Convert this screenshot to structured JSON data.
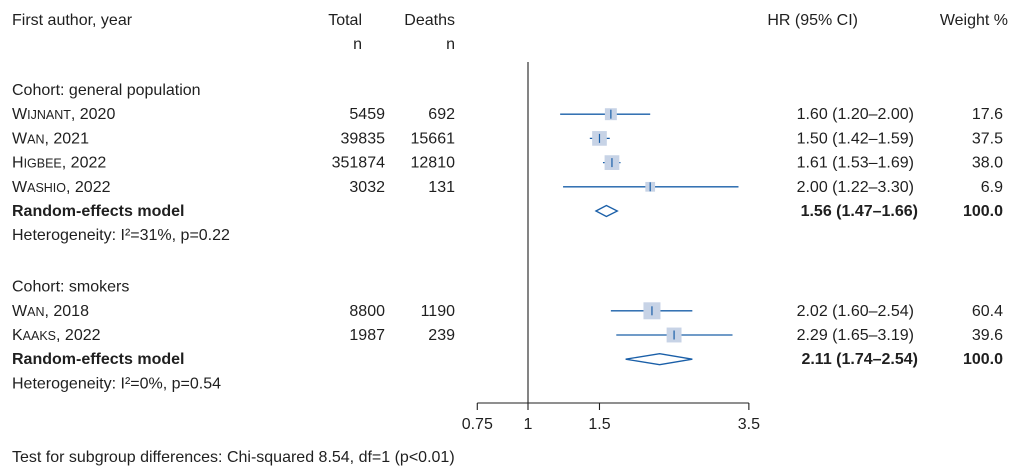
{
  "columns": {
    "author": "First author, year",
    "total_line1": "Total",
    "total_line2": "n",
    "deaths_line1": "Deaths",
    "deaths_line2": "n",
    "hr": "HR (95% CI)",
    "weight": "Weight %"
  },
  "groups": [
    {
      "title": "Cohort: general population",
      "heterogeneity": "Heterogeneity: I²=31%, p=0.22",
      "model": {
        "label": "Random-effects model",
        "hr": 1.56,
        "lower": 1.47,
        "upper": 1.66,
        "ci_text": "1.56 (1.47–1.66)",
        "weight_text": "100.0"
      },
      "studies": [
        {
          "author": "Wijnant",
          "year": "2020",
          "total": "5459",
          "deaths": "692",
          "hr": 1.6,
          "lower": 1.2,
          "upper": 2.0,
          "ci_text": "1.60 (1.20–2.00)",
          "weight": 17.6,
          "weight_text": "17.6"
        },
        {
          "author": "Wan",
          "year": "2021",
          "total": "39835",
          "deaths": "15661",
          "hr": 1.5,
          "lower": 1.42,
          "upper": 1.59,
          "ci_text": "1.50 (1.42–1.59)",
          "weight": 37.5,
          "weight_text": "37.5"
        },
        {
          "author": "Higbee",
          "year": "2022",
          "total": "351874",
          "deaths": "12810",
          "hr": 1.61,
          "lower": 1.53,
          "upper": 1.69,
          "ci_text": "1.61 (1.53–1.69)",
          "weight": 38.0,
          "weight_text": "38.0"
        },
        {
          "author": "Washio",
          "year": "2022",
          "total": "3032",
          "deaths": "131",
          "hr": 2.0,
          "lower": 1.22,
          "upper": 3.3,
          "ci_text": "2.00 (1.22–3.30)",
          "weight": 6.9,
          "weight_text": "6.9"
        }
      ]
    },
    {
      "title": "Cohort: smokers",
      "heterogeneity": "Heterogeneity: I²=0%, p=0.54",
      "model": {
        "label": "Random-effects model",
        "hr": 2.11,
        "lower": 1.74,
        "upper": 2.54,
        "ci_text": "2.11 (1.74–2.54)",
        "weight_text": "100.0"
      },
      "studies": [
        {
          "author": "Wan",
          "year": "2018",
          "total": "8800",
          "deaths": "1190",
          "hr": 2.02,
          "lower": 1.6,
          "upper": 2.54,
          "ci_text": "2.02 (1.60–2.54)",
          "weight": 60.4,
          "weight_text": "60.4"
        },
        {
          "author": "Kaaks",
          "year": "2022",
          "total": "1987",
          "deaths": "239",
          "hr": 2.29,
          "lower": 1.65,
          "upper": 3.19,
          "ci_text": "2.29 (1.65–3.19)",
          "weight": 39.6,
          "weight_text": "39.6"
        }
      ]
    }
  ],
  "axis": {
    "ticks": [
      0.75,
      1,
      1.5,
      3.5
    ],
    "tick_labels": [
      "0.75",
      "1",
      "1.5",
      "3.5"
    ],
    "reference": 1,
    "scale": "log"
  },
  "footer": "Test for subgroup differences: Chi-squared 8.54, df=1 (p<0.01)",
  "colors": {
    "ci_line": "#1a5fa8",
    "box": "#c7d3e6",
    "diamond": "#1a5fa8",
    "text": "#1f1f1f",
    "axis": "#1f1f1f"
  },
  "chart_data": {
    "type": "scatter",
    "subtype": "forest-plot",
    "xlabel": "",
    "ylabel": "",
    "xscale": "log",
    "xticks": [
      0.75,
      1,
      1.5,
      3.5
    ],
    "reference_line": 1,
    "series": [
      {
        "name": "Cohort: general population",
        "labels": [
          "Wijnant, 2020",
          "Wan, 2021",
          "Higbee, 2022",
          "Washio, 2022",
          "Random-effects model"
        ],
        "hr": [
          1.6,
          1.5,
          1.61,
          2.0,
          1.56
        ],
        "lower": [
          1.2,
          1.42,
          1.53,
          1.22,
          1.47
        ],
        "upper": [
          2.0,
          1.59,
          1.69,
          3.3,
          1.66
        ]
      },
      {
        "name": "Cohort: smokers",
        "labels": [
          "Wan, 2018",
          "Kaaks, 2022",
          "Random-effects model"
        ],
        "hr": [
          2.02,
          2.29,
          2.11
        ],
        "lower": [
          1.6,
          1.65,
          1.74
        ],
        "upper": [
          2.54,
          3.19,
          2.54
        ]
      }
    ]
  }
}
